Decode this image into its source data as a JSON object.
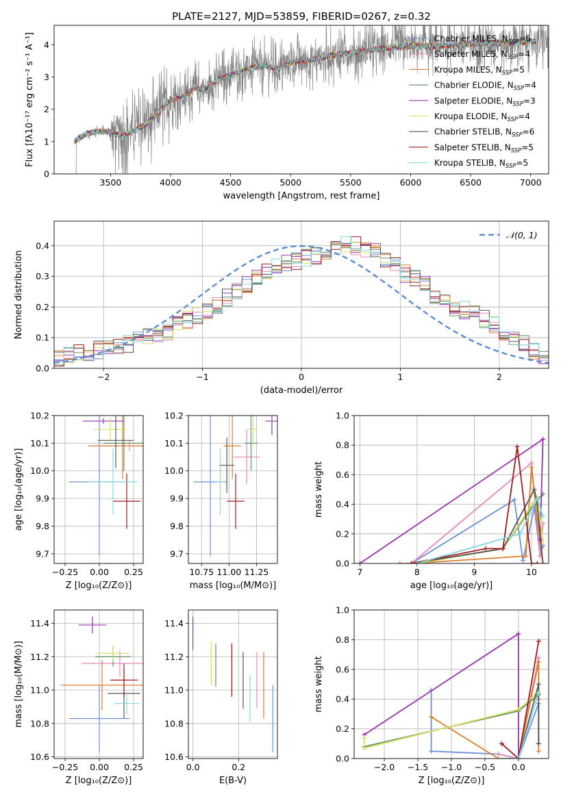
{
  "figure_title": "PLATE=2127, MJD=53859, FIBERID=0267, z=0.32",
  "models": [
    {
      "name": "Chabrier MILES",
      "nssp": "6",
      "color": "#6a8fd8"
    },
    {
      "name": "Salpeter MILES",
      "nssp": "4",
      "color": "#e888b8"
    },
    {
      "name": "Kroupa MILES",
      "nssp": "5",
      "color": "#e07b28"
    },
    {
      "name": "Chabrier ELODIE",
      "nssp": "4",
      "color": "#5f8f5f"
    },
    {
      "name": "Salpeter ELODIE",
      "nssp": "3",
      "color": "#9b30b0"
    },
    {
      "name": "Kroupa ELODIE",
      "nssp": "4",
      "color": "#d4e060"
    },
    {
      "name": "Chabrier STELIB",
      "nssp": "6",
      "color": "#555555"
    },
    {
      "name": "Salpeter STELIB",
      "nssp": "5",
      "color": "#a01818"
    },
    {
      "name": "Kroupa STELIB",
      "nssp": "5",
      "color": "#80d8e0"
    }
  ],
  "chart_data": [
    {
      "id": "spectrum",
      "type": "line",
      "title": "PLATE=2127, MJD=53859, FIBERID=0267, z=0.32",
      "xlabel": "wavelength [Angstrom, rest frame]",
      "ylabel": "Flux [fλ10⁻¹⁷ erg cm⁻² s⁻¹ A⁻¹]",
      "xlim": [
        3030,
        7150
      ],
      "ylim": [
        0,
        4.6
      ],
      "xticks": [
        3500,
        4000,
        4500,
        5000,
        5500,
        6000,
        6500,
        7000
      ],
      "yticks": [
        0,
        1,
        2,
        3,
        4
      ],
      "data_color": "#808080",
      "continuum": {
        "x": [
          3200,
          3300,
          3400,
          3500,
          3600,
          3700,
          3800,
          3900,
          4000,
          4100,
          4200,
          4300,
          4400,
          4500,
          4600,
          4700,
          4800,
          4900,
          5000,
          5200,
          5400,
          5600,
          5800,
          6000,
          6200,
          6400,
          6600,
          6800,
          7000,
          7100
        ],
        "y": [
          1.0,
          1.25,
          1.32,
          1.3,
          1.15,
          1.35,
          1.55,
          1.9,
          2.3,
          2.35,
          2.65,
          2.6,
          2.95,
          3.05,
          3.2,
          3.3,
          3.35,
          3.25,
          3.45,
          3.55,
          3.7,
          3.8,
          3.9,
          3.95,
          3.95,
          4.0,
          4.05,
          4.05,
          4.1,
          4.1
        ]
      },
      "data_range": [
        3200,
        7150
      ],
      "model_range": [
        3200,
        7050
      ],
      "legend": "top-right",
      "grid": false
    },
    {
      "id": "residuals",
      "type": "line",
      "xlabel": "(data-model)/error",
      "ylabel": "Normed distribution",
      "xlim": [
        -2.5,
        2.5
      ],
      "ylim": [
        0,
        0.48
      ],
      "xticks": [
        -2,
        -1,
        0,
        1,
        2
      ],
      "yticks": [
        0.0,
        0.1,
        0.2,
        0.3,
        0.4
      ],
      "bin_edges_start": -2.5,
      "bin_width": 0.1,
      "base_histogram": [
        0.03,
        0.04,
        0.05,
        0.055,
        0.06,
        0.065,
        0.07,
        0.08,
        0.09,
        0.1,
        0.11,
        0.12,
        0.14,
        0.16,
        0.17,
        0.19,
        0.21,
        0.23,
        0.25,
        0.27,
        0.29,
        0.31,
        0.33,
        0.34,
        0.35,
        0.36,
        0.37,
        0.38,
        0.39,
        0.4,
        0.4,
        0.39,
        0.38,
        0.36,
        0.34,
        0.31,
        0.29,
        0.27,
        0.24,
        0.22,
        0.2,
        0.19,
        0.18,
        0.16,
        0.14,
        0.12,
        0.1,
        0.08,
        0.06,
        0.04
      ],
      "gaussian_label": "𝒩(0, 1)",
      "gaussian_color": "#5b8bd0",
      "legend": "top-right",
      "grid": true
    },
    {
      "id": "age_vs_Z",
      "type": "scatter",
      "xlabel": "Z [log₁₀(Z/Z⊙)]",
      "ylabel": "age  [log₁₀(age/yr)]",
      "xlim": [
        -0.33,
        0.32
      ],
      "ylim": [
        9.665,
        10.2
      ],
      "xticks": [
        -0.25,
        0.0,
        0.25
      ],
      "yticks": [
        9.7,
        9.8,
        9.9,
        10.0,
        10.1,
        10.2
      ],
      "x": [
        0.0,
        0.22,
        0.17,
        0.18,
        0.03,
        0.08,
        0.12,
        0.2,
        0.1
      ],
      "xerr": [
        0.22,
        0.28,
        0.25,
        0.15,
        0.15,
        0.12,
        0.13,
        0.1,
        0.18
      ],
      "y": [
        9.96,
        10.09,
        10.09,
        10.1,
        10.18,
        10.15,
        10.11,
        9.89,
        9.96
      ],
      "yerr": [
        0.27,
        0.02,
        0.12,
        0.1,
        0.01,
        0.04,
        0.1,
        0.1,
        0.12
      ],
      "grid": true
    },
    {
      "id": "age_vs_mass",
      "type": "scatter",
      "xlabel": "mass [log₁₀(M/M⊙)]",
      "xlim": [
        10.63,
        11.44
      ],
      "ylim": [
        9.665,
        10.2
      ],
      "xticks": [
        10.75,
        11.0,
        11.25
      ],
      "yticks": [
        9.7,
        9.8,
        9.9,
        10.0,
        10.1,
        10.2
      ],
      "x": [
        10.83,
        11.16,
        11.03,
        11.2,
        11.39,
        11.22,
        10.98,
        11.06,
        10.92
      ],
      "xerr": [
        0.15,
        0.12,
        0.08,
        0.06,
        0.06,
        0.04,
        0.07,
        0.08,
        0.04
      ],
      "y": [
        9.96,
        10.05,
        10.09,
        10.1,
        10.18,
        10.15,
        10.02,
        9.89,
        9.96
      ],
      "yerr": [
        0.27,
        0.1,
        0.12,
        0.1,
        0.05,
        0.06,
        0.1,
        0.1,
        0.12
      ],
      "grid": true
    },
    {
      "id": "mass_vs_Z",
      "type": "scatter",
      "xlabel": "Z [log₁₀(Z/Z⊙)]",
      "ylabel": "mass [log₁₀(M/M⊙)]",
      "xlim": [
        -0.33,
        0.32
      ],
      "ylim": [
        10.59,
        11.48
      ],
      "xticks": [
        -0.25,
        0.0,
        0.25
      ],
      "yticks": [
        10.6,
        10.8,
        11.0,
        11.2,
        11.4
      ],
      "x": [
        0.0,
        0.15,
        0.02,
        0.1,
        -0.05,
        0.1,
        0.18,
        0.18,
        0.2
      ],
      "xerr": [
        0.22,
        0.28,
        0.3,
        0.13,
        0.1,
        0.12,
        0.12,
        0.1,
        0.09
      ],
      "y": [
        10.83,
        11.16,
        11.03,
        11.2,
        11.39,
        11.22,
        10.98,
        11.06,
        10.92
      ],
      "yerr": [
        0.2,
        0.08,
        0.15,
        0.06,
        0.05,
        0.05,
        0.15,
        0.1,
        0.07
      ],
      "grid": true
    },
    {
      "id": "mass_vs_ebv",
      "type": "scatter",
      "xlabel": "E(B-V)",
      "xlim": [
        -0.02,
        0.37
      ],
      "ylim": [
        10.59,
        11.48
      ],
      "xticks": [
        0.0,
        0.2
      ],
      "yticks": [
        10.6,
        10.8,
        11.0,
        11.2,
        11.4
      ],
      "x": [
        0.35,
        0.28,
        0.31,
        0.1,
        0.0,
        0.08,
        0.22,
        0.17,
        0.25
      ],
      "y": [
        10.83,
        11.06,
        11.03,
        11.15,
        11.34,
        11.16,
        11.06,
        11.12,
        10.95
      ],
      "yerr": [
        0.2,
        0.17,
        0.2,
        0.13,
        0.1,
        0.13,
        0.17,
        0.16,
        0.14
      ],
      "grid": true
    },
    {
      "id": "weight_vs_age",
      "type": "line",
      "xlabel": "age  [log₁₀(age/yr)]",
      "ylabel": "mass weight",
      "xlim": [
        6.9,
        10.3
      ],
      "ylim": [
        0,
        1
      ],
      "xticks": [
        7,
        8,
        9,
        10
      ],
      "yticks": [
        0.0,
        0.2,
        0.4,
        0.6,
        0.8,
        1.0
      ],
      "series": [
        {
          "x": [
            7.9,
            9.7,
            9.85,
            10.05,
            10.15,
            10.2
          ],
          "y": [
            0.0,
            0.43,
            0.02,
            0.38,
            0.05,
            0.12
          ]
        },
        {
          "x": [
            7.9,
            10.0,
            10.15,
            10.2
          ],
          "y": [
            0.0,
            0.68,
            0.05,
            0.27
          ]
        },
        {
          "x": [
            7.7,
            7.9,
            9.9,
            10.0,
            10.1,
            10.2
          ],
          "y": [
            0.0,
            0.0,
            0.05,
            0.65,
            0.3,
            0.0
          ]
        },
        {
          "x": [
            8.0,
            9.5,
            10.1,
            10.2
          ],
          "y": [
            0.0,
            0.1,
            0.43,
            0.47
          ]
        },
        {
          "x": [
            7.0,
            10.2,
            10.15
          ],
          "y": [
            0.0,
            0.84,
            0.16
          ]
        },
        {
          "x": [
            8.0,
            9.5,
            10.1,
            10.15,
            10.2
          ],
          "y": [
            0.0,
            0.1,
            0.45,
            0.3,
            0.15
          ]
        },
        {
          "x": [
            7.9,
            9.5,
            10.05,
            10.1,
            10.2
          ],
          "y": [
            0.0,
            0.1,
            0.5,
            0.4,
            0.0
          ]
        },
        {
          "x": [
            7.9,
            9.2,
            9.5,
            9.75,
            10.0,
            10.1
          ],
          "y": [
            0.0,
            0.1,
            0.1,
            0.79,
            0.0,
            0.0
          ]
        },
        {
          "x": [
            8.0,
            9.8,
            10.1,
            10.2
          ],
          "y": [
            0.0,
            0.2,
            0.44,
            0.32
          ]
        }
      ],
      "grid": true
    },
    {
      "id": "weight_vs_Z",
      "type": "line",
      "xlabel": "Z [log₁₀(Z/Z⊙)]",
      "ylabel": "mass weight",
      "xlim": [
        -2.45,
        0.45
      ],
      "ylim": [
        0,
        1
      ],
      "xticks": [
        -2.0,
        -1.5,
        -1.0,
        -0.5,
        0.0
      ],
      "yticks": [
        0.0,
        0.2,
        0.4,
        0.6,
        0.8,
        1.0
      ],
      "series": [
        {
          "x": [
            -1.3,
            -1.3,
            -0.3,
            0.0,
            0.3,
            0.3
          ],
          "y": [
            0.46,
            0.05,
            0.03,
            0.0,
            0.37,
            0.1
          ]
        },
        {
          "x": [
            -0.3,
            0.0,
            0.3,
            0.3
          ],
          "y": [
            0.03,
            0.0,
            0.68,
            0.4
          ]
        },
        {
          "x": [
            -1.3,
            -0.3,
            0.0,
            0.3,
            0.3
          ],
          "y": [
            0.28,
            0.0,
            0.0,
            0.65,
            0.05
          ]
        },
        {
          "x": [
            -2.3,
            0.0,
            0.3
          ],
          "y": [
            0.08,
            0.32,
            0.43
          ]
        },
        {
          "x": [
            -2.3,
            0.0,
            0.0
          ],
          "y": [
            0.16,
            0.84,
            0.0
          ]
        },
        {
          "x": [
            -2.3,
            -2.3,
            0.0,
            0.3
          ],
          "y": [
            0.14,
            0.07,
            0.33,
            0.45
          ]
        },
        {
          "x": [
            0.0,
            0.3,
            0.3
          ],
          "y": [
            0.0,
            0.5,
            0.1
          ]
        },
        {
          "x": [
            -0.25,
            0.0,
            0.3
          ],
          "y": [
            0.1,
            0.0,
            0.79
          ]
        },
        {
          "x": [
            -0.3,
            0.0,
            0.3
          ],
          "y": [
            0.0,
            0.0,
            0.44
          ]
        }
      ],
      "grid": true
    }
  ]
}
